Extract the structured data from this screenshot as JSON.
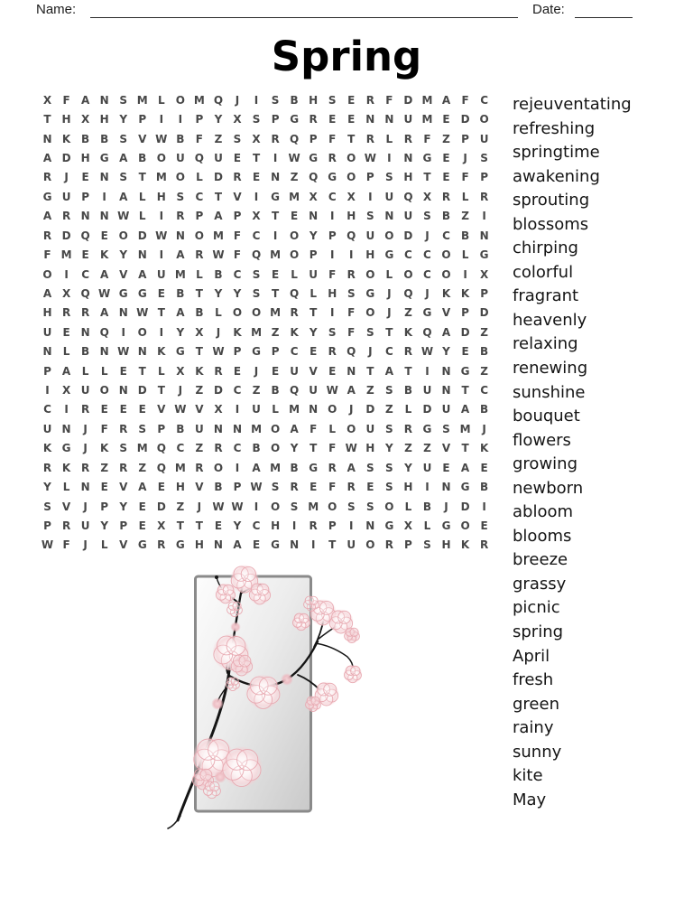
{
  "header": {
    "name_label": "Name:",
    "date_label": "Date:"
  },
  "title": "Spring",
  "puzzle": {
    "grid_size": {
      "rows": 24,
      "cols": 24
    },
    "rows": [
      "XFANSMLOMQJISBHSERFDMAFC",
      "THXHYPIIPYXSPGREENNUMEDO",
      "NKBBSVWBFZSXRQPFTRLRFZPU",
      "ADHGABOUQUETIWGROWINGEJS",
      "RJENSTMOLDRENZQGOPSHTEFP",
      "GUPIALHSCTVIGMXCXIUQXRLR",
      "ARNNWLIRPAPXTENIHSNUSBZI",
      "RDQEODWNOMFCIOYPQUODJCBN",
      "FMEKYNIARWFQMOPIIHGCCOLG",
      "OICAVAUMLBCSELUFROLOCOIX",
      "AXQWGGEBTYYSTQLHSGJQJKKP",
      "HRRANWTABLOOMRTIFOJZGVPD",
      "UENQIOIYXJKMZKYSFSTKQADZ",
      "NLBNWNKGTWPGPCERQJCRWYEB",
      "PALLETLXKREJEUVENTATINGZ",
      "IXUONDTJZDCZBQUWAZSBUNTC",
      "CIREEEVWVXIULMNOJDZLDUAB",
      "UNJFRSPBUNNMOAFLOUSRGSMJ",
      "KGJKSMQCZRCBOYTFWHYZZVTK",
      "RKRZRZQMROIAMBGRASSYUEAE",
      "YLNEVAEHVBPWSREFRESHINGB",
      "SVJPYEDZJWWIOSMOSSOLBJDI",
      "PRUYPEXTTEYCHIRPINGXLGOE",
      "WFJLVGRGHNAEGNITUORPSHKR"
    ]
  },
  "word_list": [
    "rejeuventating",
    "refreshing",
    "springtime",
    "awakening",
    "sprouting",
    "blossoms",
    "chirping",
    "colorful",
    "fragrant",
    "heavenly",
    "relaxing",
    "renewing",
    "sunshine",
    "bouquet",
    "flowers",
    "growing",
    "newborn",
    "abloom",
    "blooms",
    "breeze",
    "grassy",
    "picnic",
    "spring",
    "April",
    "fresh",
    "green",
    "rainy",
    "sunny",
    "kite",
    "May"
  ],
  "illustration": {
    "name": "cherry-blossom-branch-in-frame"
  },
  "colors": {
    "letter": "#474747",
    "word_text": "#141414",
    "frame_border": "#8a8a8a",
    "frame_fill_light": "#fbfbfb",
    "frame_fill_dark": "#cacaca",
    "blossom_pink": "#f4cdd2",
    "petal_outline": "#e8a9b1",
    "branch_black": "#151515"
  }
}
